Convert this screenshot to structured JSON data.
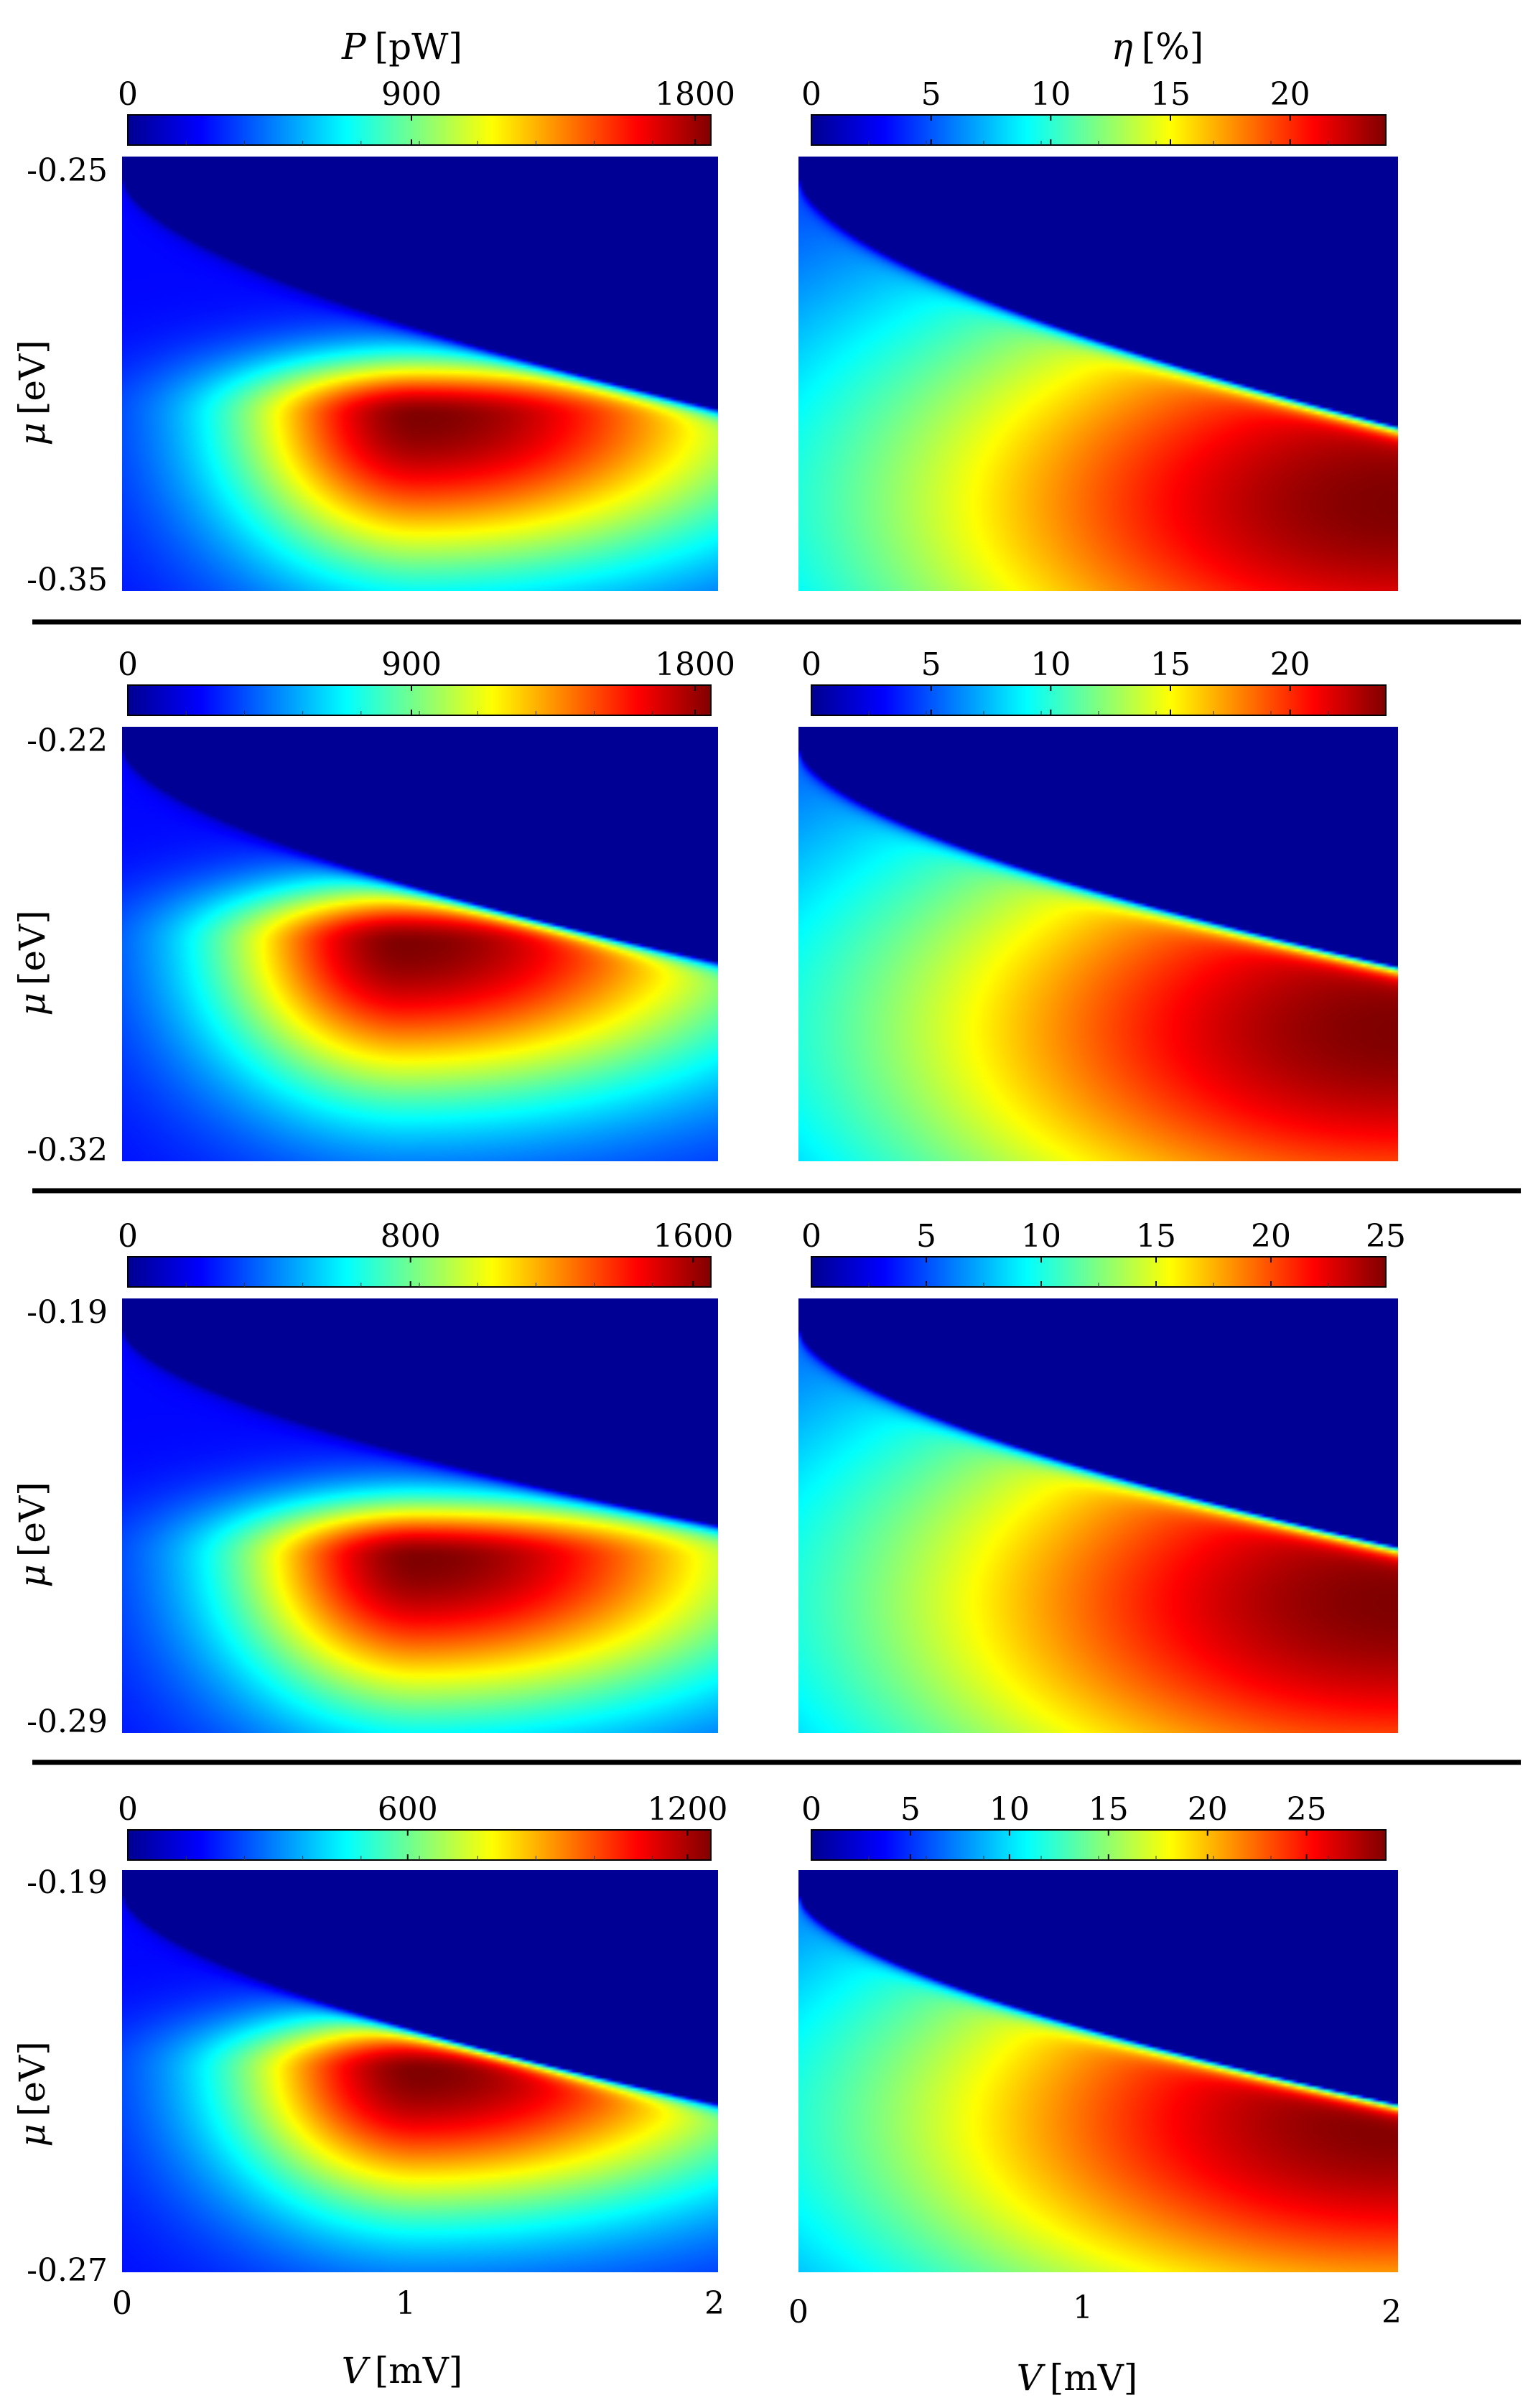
{
  "figure": {
    "column_titles": {
      "left": {
        "symbol": "P",
        "unit": "[pW]"
      },
      "right": {
        "symbol": "η",
        "unit": "[%]"
      }
    },
    "y_axis": {
      "symbol": "μ",
      "unit": "[eV]"
    },
    "x_axis": {
      "symbol": "V",
      "unit": "[mV]",
      "ticks": [
        "0",
        "1",
        "2"
      ],
      "range": [
        0,
        2
      ]
    }
  },
  "chart_data": [
    {
      "type": "heatmap",
      "colormap": "jet",
      "row": 1,
      "column": "left",
      "title": "P [pW]",
      "colorbar_ticks": [
        "0",
        "900",
        "1800"
      ],
      "colorbar_range": [
        0,
        1850
      ],
      "xlim": [
        0,
        2
      ],
      "ylim": [
        -0.35,
        -0.25
      ],
      "ytick_labels": [
        "-0.25",
        "-0.35"
      ],
      "pattern": "power",
      "peak": {
        "V": 1.0,
        "mu": -0.31,
        "value": 1850
      },
      "boundary": {
        "start": 0.05,
        "end": 0.58
      }
    },
    {
      "type": "heatmap",
      "colormap": "jet",
      "row": 1,
      "column": "right",
      "title": "η [%]",
      "colorbar_ticks": [
        "0",
        "5",
        "10",
        "15",
        "20"
      ],
      "colorbar_range": [
        0,
        24
      ],
      "xlim": [
        0,
        2
      ],
      "ylim": [
        -0.35,
        -0.25
      ],
      "pattern": "efficiency",
      "peak": {
        "V": 2.0,
        "mu": -0.33,
        "value": 24
      },
      "boundary": {
        "start": 0.05,
        "end": 0.62
      }
    },
    {
      "type": "heatmap",
      "colormap": "jet",
      "row": 2,
      "column": "left",
      "colorbar_ticks": [
        "0",
        "900",
        "1800"
      ],
      "colorbar_range": [
        0,
        1850
      ],
      "xlim": [
        0,
        2
      ],
      "ylim": [
        -0.32,
        -0.22
      ],
      "ytick_labels": [
        "-0.22",
        "-0.32"
      ],
      "pattern": "power",
      "peak": {
        "V": 0.95,
        "mu": -0.27,
        "value": 1850
      },
      "boundary": {
        "start": 0.05,
        "end": 0.54
      }
    },
    {
      "type": "heatmap",
      "colormap": "jet",
      "row": 2,
      "column": "right",
      "colorbar_ticks": [
        "0",
        "5",
        "10",
        "15",
        "20"
      ],
      "colorbar_range": [
        0,
        24
      ],
      "xlim": [
        0,
        2
      ],
      "ylim": [
        -0.32,
        -0.22
      ],
      "pattern": "efficiency",
      "peak": {
        "V": 2.0,
        "mu": -0.29,
        "value": 24
      },
      "boundary": {
        "start": 0.05,
        "end": 0.55
      }
    },
    {
      "type": "heatmap",
      "colormap": "jet",
      "row": 3,
      "column": "left",
      "colorbar_ticks": [
        "0",
        "800",
        "1600"
      ],
      "colorbar_range": [
        0,
        1650
      ],
      "xlim": [
        0,
        2
      ],
      "ylim": [
        -0.29,
        -0.19
      ],
      "ytick_labels": [
        "-0.19",
        "-0.29"
      ],
      "pattern": "power",
      "peak": {
        "V": 1.0,
        "mu": -0.25,
        "value": 1650
      },
      "boundary": {
        "start": 0.07,
        "end": 0.52
      }
    },
    {
      "type": "heatmap",
      "colormap": "jet",
      "row": 3,
      "column": "right",
      "colorbar_ticks": [
        "0",
        "5",
        "10",
        "15",
        "20",
        "25"
      ],
      "colorbar_range": [
        0,
        25
      ],
      "xlim": [
        0,
        2
      ],
      "ylim": [
        -0.29,
        -0.19
      ],
      "pattern": "efficiency",
      "peak": {
        "V": 2.0,
        "mu": -0.26,
        "value": 25
      },
      "boundary": {
        "start": 0.07,
        "end": 0.57
      }
    },
    {
      "type": "heatmap",
      "colormap": "jet",
      "row": 4,
      "column": "left",
      "colorbar_ticks": [
        "0",
        "600",
        "1200"
      ],
      "colorbar_range": [
        0,
        1250
      ],
      "xlim": [
        0,
        2
      ],
      "ylim": [
        -0.27,
        -0.19
      ],
      "ytick_labels": [
        "-0.19",
        "-0.27"
      ],
      "pattern": "power",
      "peak": {
        "V": 1.0,
        "mu": -0.23,
        "value": 1250
      },
      "boundary": {
        "start": 0.06,
        "end": 0.58
      }
    },
    {
      "type": "heatmap",
      "colormap": "jet",
      "row": 4,
      "column": "right",
      "colorbar_ticks": [
        "0",
        "5",
        "10",
        "15",
        "20",
        "25"
      ],
      "colorbar_range": [
        0,
        29
      ],
      "xlim": [
        0,
        2
      ],
      "ylim": [
        -0.27,
        -0.19
      ],
      "pattern": "efficiency",
      "peak": {
        "V": 2.0,
        "mu": -0.24,
        "value": 29
      },
      "boundary": {
        "start": 0.06,
        "end": 0.58
      }
    }
  ]
}
